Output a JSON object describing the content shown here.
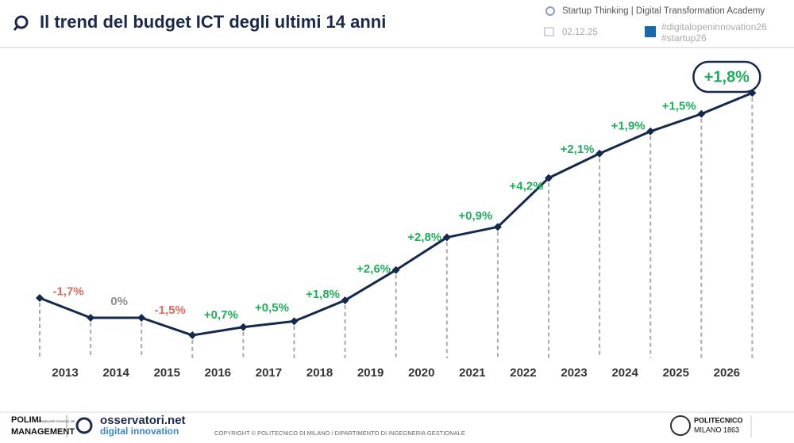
{
  "header": {
    "title": "Il trend del budget ICT degli ultimi 14 anni",
    "academy": "Startup Thinking | Digital Transformation Academy",
    "date": "02.12.25",
    "hashtags": [
      "#digitalopeninnovation26",
      "#startup26"
    ]
  },
  "chart_data": {
    "type": "line",
    "categories": [
      "2013",
      "2014",
      "2015",
      "2016",
      "2017",
      "2018",
      "2019",
      "2020",
      "2021",
      "2022",
      "2023",
      "2024",
      "2025",
      "2026"
    ],
    "values": [
      -1.7,
      0,
      -1.5,
      0.7,
      0.5,
      1.8,
      2.6,
      2.8,
      0.9,
      4.2,
      2.1,
      1.9,
      1.5,
      1.8
    ],
    "value_labels": [
      "-1,7%",
      "0%",
      "-1,5%",
      "+0,7%",
      "+0,5%",
      "+1,8%",
      "+2,6%",
      "+2,8%",
      "+0,9%",
      "+4,2%",
      "+2,1%",
      "+1,9%",
      "+1,5%",
      "+1,8%"
    ],
    "color": "#14294b",
    "positive_color": "#1fae5b",
    "negative_color": "#e0695a",
    "zero_color": "#8c8c8c"
  },
  "footer": {
    "polimi": [
      "POLIMI",
      "GRADUATE SCHOOL OF",
      "MANAGEMENT"
    ],
    "osservatori": "osservatori.net",
    "osservatori_sub": "digital innovation",
    "copyright": "COPYRIGHT © POLITECNICO DI MILANO / DIPARTIMENTO DI INGEGNERIA GESTIONALE",
    "politecnico": [
      "POLITECNICO",
      "MILANO 1863"
    ]
  }
}
